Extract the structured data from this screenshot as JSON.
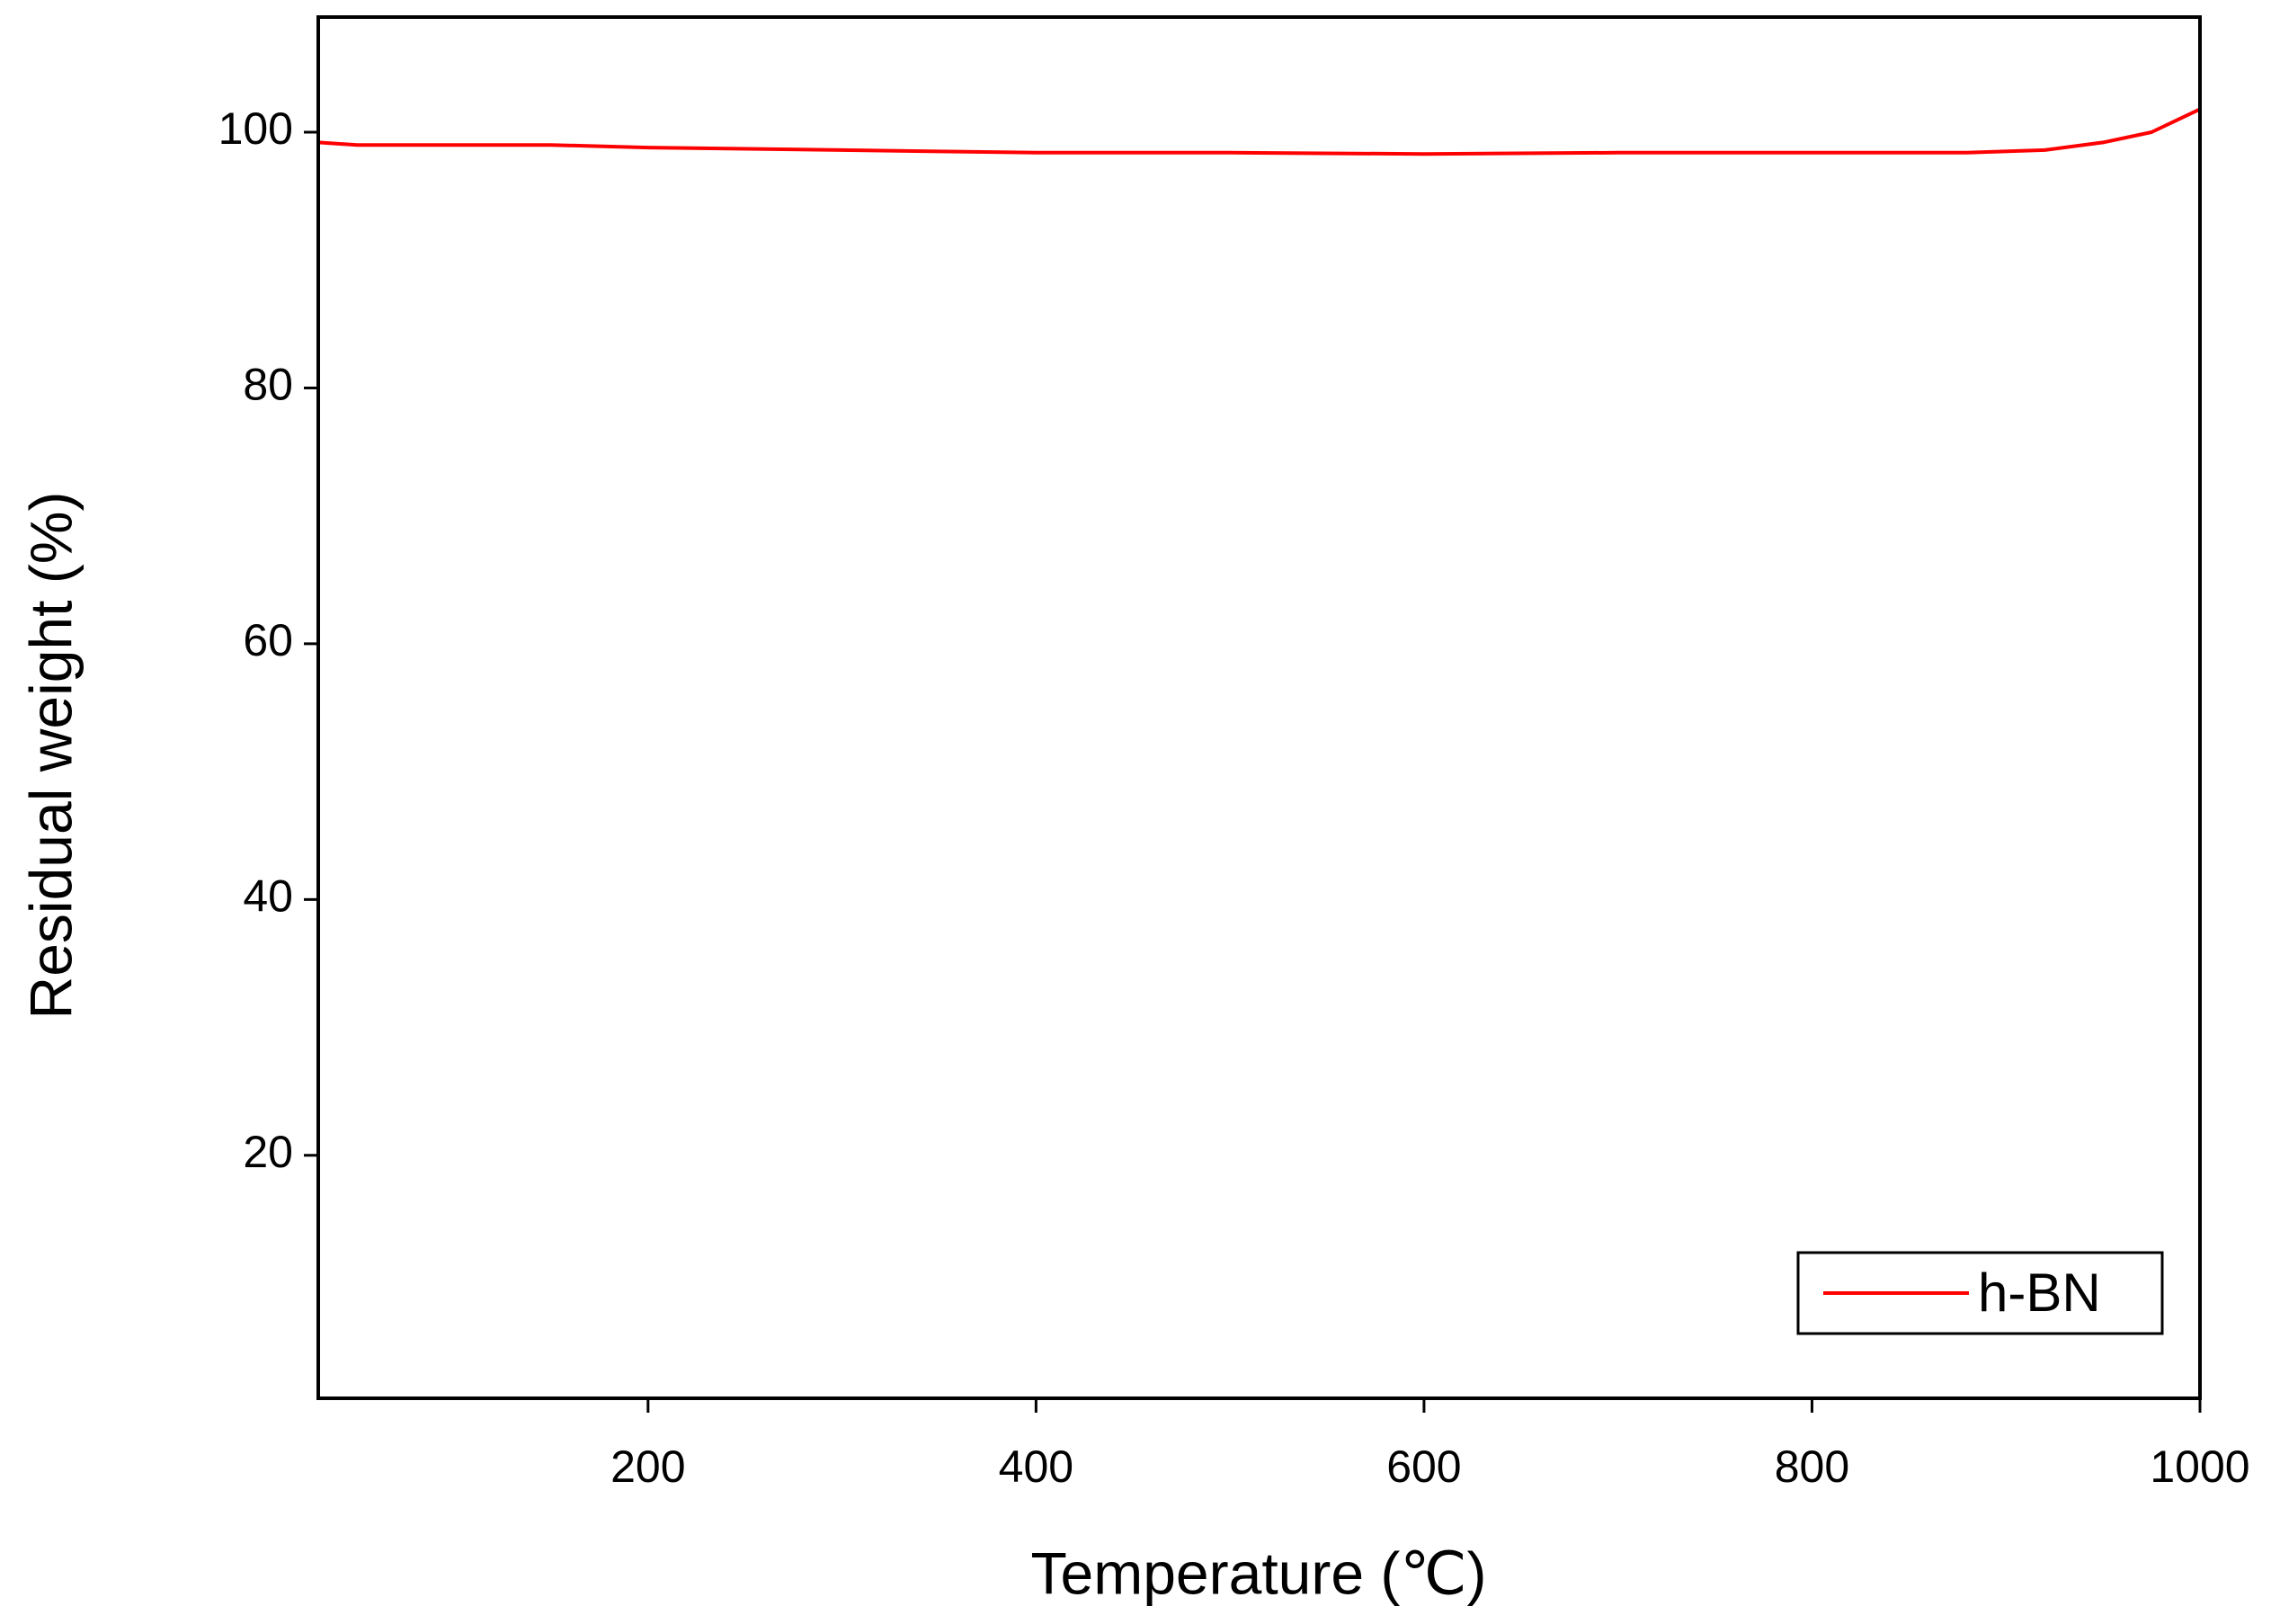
{
  "chart_data": {
    "type": "line",
    "xlabel": "Temperature (℃)",
    "ylabel": "Residual weight (%)",
    "x": [
      30,
      50,
      100,
      150,
      200,
      300,
      400,
      500,
      600,
      700,
      800,
      880,
      920,
      950,
      975,
      1000
    ],
    "series": [
      {
        "name": "h-BN",
        "color": "#ff0000",
        "values": [
          99.2,
          99.0,
          99.0,
          99.0,
          98.8,
          98.6,
          98.4,
          98.4,
          98.3,
          98.4,
          98.4,
          98.4,
          98.6,
          99.2,
          100.0,
          101.8
        ]
      }
    ],
    "xlim": [
      30,
      1000
    ],
    "xticks": [
      200,
      400,
      600,
      800,
      1000
    ],
    "ylim": [
      1,
      109
    ],
    "yticks": [
      20,
      40,
      60,
      80,
      100
    ],
    "grid": false,
    "legend": "lower right"
  }
}
